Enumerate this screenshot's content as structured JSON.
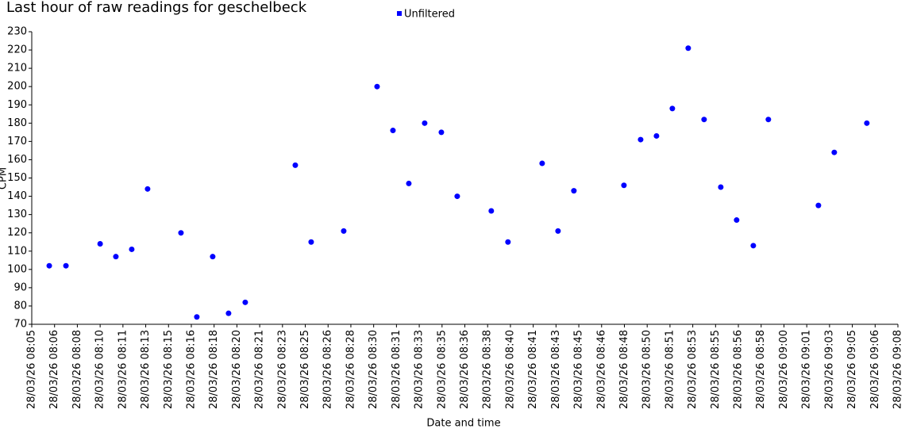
{
  "chart_data": {
    "type": "scatter",
    "title": "Last hour of raw readings for geschelbeck",
    "x_label": "Date and time",
    "y_label": "CPM",
    "series": [
      {
        "name": "Unfiltered",
        "color": "#0000ff",
        "x": [
          6.28,
          7.5,
          10.0,
          11.15,
          12.31,
          13.47,
          15.91,
          17.07,
          18.23,
          19.39,
          20.61,
          24.27,
          25.43,
          27.81,
          30.25,
          31.41,
          32.57,
          33.73,
          34.95,
          36.11,
          38.6,
          39.82,
          42.32,
          43.48,
          44.64,
          48.3,
          49.52,
          50.68,
          51.84,
          53.0,
          54.16,
          55.38,
          56.54,
          57.76,
          58.86,
          62.52,
          63.68,
          66.06
        ],
        "values": [
          102,
          102,
          114,
          107,
          111,
          144,
          120,
          74,
          107,
          76,
          82,
          157,
          115,
          121,
          200,
          176,
          147,
          180,
          175,
          140,
          132,
          115,
          158,
          121,
          143,
          146,
          171,
          173,
          188,
          221,
          182,
          145,
          127,
          113,
          182,
          135,
          164,
          180
        ]
      }
    ],
    "xlim": [
      5,
      68.333
    ],
    "xticks": [
      {
        "value": 5,
        "label": "28/03/26 08:05"
      },
      {
        "value": 6.667,
        "label": "28/03/26 08:06"
      },
      {
        "value": 8.333,
        "label": "28/03/26 08:08"
      },
      {
        "value": 10,
        "label": "28/03/26 08:10"
      },
      {
        "value": 11.667,
        "label": "28/03/26 08:11"
      },
      {
        "value": 13.333,
        "label": "28/03/26 08:13"
      },
      {
        "value": 15,
        "label": "28/03/26 08:15"
      },
      {
        "value": 16.667,
        "label": "28/03/26 08:16"
      },
      {
        "value": 18.333,
        "label": "28/03/26 08:18"
      },
      {
        "value": 20,
        "label": "28/03/26 08:20"
      },
      {
        "value": 21.667,
        "label": "28/03/26 08:21"
      },
      {
        "value": 23.333,
        "label": "28/03/26 08:23"
      },
      {
        "value": 25,
        "label": "28/03/26 08:25"
      },
      {
        "value": 26.667,
        "label": "28/03/26 08:26"
      },
      {
        "value": 28.333,
        "label": "28/03/26 08:28"
      },
      {
        "value": 30,
        "label": "28/03/26 08:30"
      },
      {
        "value": 31.667,
        "label": "28/03/26 08:31"
      },
      {
        "value": 33.333,
        "label": "28/03/26 08:33"
      },
      {
        "value": 35,
        "label": "28/03/26 08:35"
      },
      {
        "value": 36.667,
        "label": "28/03/26 08:36"
      },
      {
        "value": 38.333,
        "label": "28/03/26 08:38"
      },
      {
        "value": 40,
        "label": "28/03/26 08:40"
      },
      {
        "value": 41.667,
        "label": "28/03/26 08:41"
      },
      {
        "value": 43.333,
        "label": "28/03/26 08:43"
      },
      {
        "value": 45,
        "label": "28/03/26 08:45"
      },
      {
        "value": 46.667,
        "label": "28/03/26 08:46"
      },
      {
        "value": 48.333,
        "label": "28/03/26 08:48"
      },
      {
        "value": 50,
        "label": "28/03/26 08:50"
      },
      {
        "value": 51.667,
        "label": "28/03/26 08:51"
      },
      {
        "value": 53.333,
        "label": "28/03/26 08:53"
      },
      {
        "value": 55,
        "label": "28/03/26 08:55"
      },
      {
        "value": 56.667,
        "label": "28/03/26 08:56"
      },
      {
        "value": 58.333,
        "label": "28/03/26 08:58"
      },
      {
        "value": 60,
        "label": "28/03/26 09:00"
      },
      {
        "value": 61.667,
        "label": "28/03/26 09:01"
      },
      {
        "value": 63.333,
        "label": "28/03/26 09:03"
      },
      {
        "value": 65,
        "label": "28/03/26 09:05"
      },
      {
        "value": 66.667,
        "label": "28/03/26 09:06"
      },
      {
        "value": 68.333,
        "label": "28/03/26 09:08"
      }
    ],
    "ylim": [
      70,
      230
    ],
    "yticks": [
      70,
      80,
      90,
      100,
      110,
      120,
      130,
      140,
      150,
      160,
      170,
      180,
      190,
      200,
      210,
      220,
      230
    ],
    "grid": false,
    "legend": "top"
  }
}
